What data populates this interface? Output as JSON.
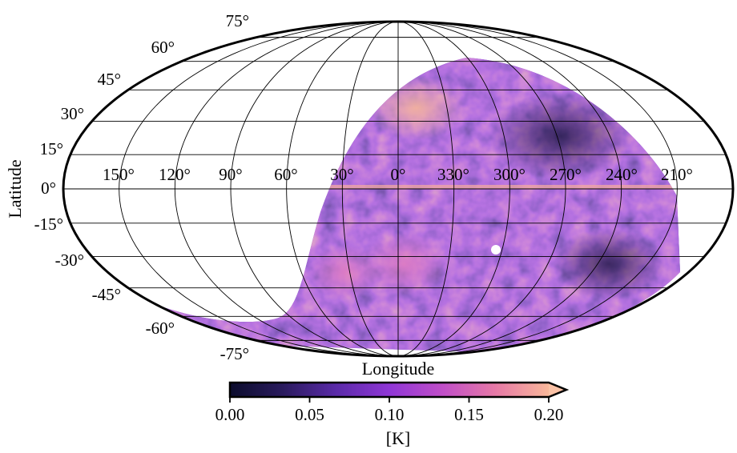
{
  "map": {
    "projection": "Mollweide",
    "y_axis_label": "Latitude",
    "x_axis_label": "Longitude",
    "lat_ticks": [
      "75°",
      "60°",
      "45°",
      "30°",
      "15°",
      "0°",
      "-15°",
      "-30°",
      "-45°",
      "-60°",
      "-75°"
    ],
    "lat_tick_values": [
      75,
      60,
      45,
      30,
      15,
      0,
      -15,
      -30,
      -45,
      -60,
      -75
    ],
    "lon_ticks": [
      "150°",
      "120°",
      "90°",
      "60°",
      "30°",
      "0°",
      "330°",
      "300°",
      "270°",
      "240°",
      "210°"
    ],
    "lon_tick_values": [
      150,
      120,
      90,
      60,
      30,
      0,
      330,
      300,
      270,
      240,
      210
    ],
    "masked_region": "unobserved sky (white)",
    "colormap": "magma-like (dark navy → purple → pink → peach)"
  },
  "colorbar": {
    "ticks": [
      "0.00",
      "0.05",
      "0.10",
      "0.15",
      "0.20"
    ],
    "tick_values": [
      0.0,
      0.05,
      0.1,
      0.15,
      0.2
    ],
    "range": [
      0.0,
      0.2
    ],
    "extend": "max",
    "unit_label": "[K]",
    "colors": [
      "#0b0c2c",
      "#2a1b5e",
      "#5a2aa8",
      "#8f36d6",
      "#c04ec8",
      "#e679a6",
      "#f9b79a"
    ]
  }
}
